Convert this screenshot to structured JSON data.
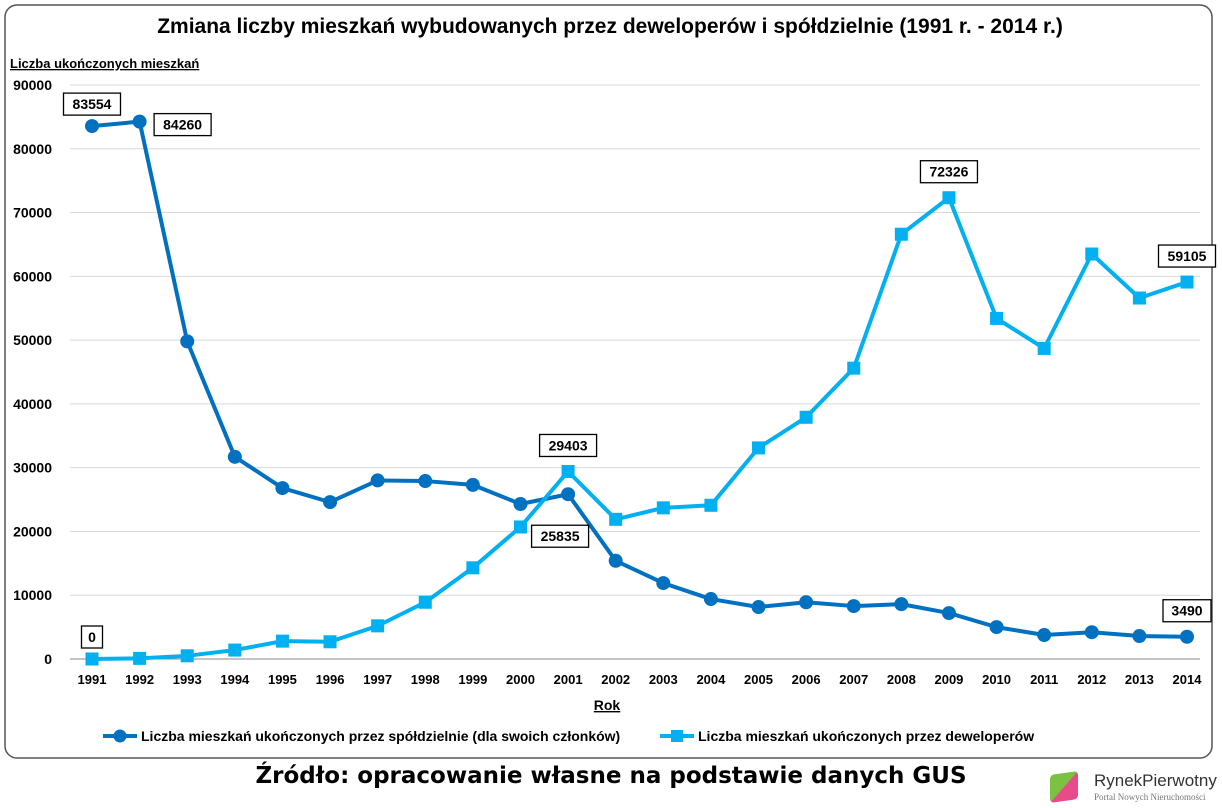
{
  "chart_data": {
    "type": "line",
    "title": "Zmiana liczby mieszkań wybudowanych przez deweloperów i spółdzielnie (1991 r. - 2014 r.)",
    "xlabel": "Rok",
    "ylabel": "Liczba ukończonych mieszkań",
    "ylim": [
      0,
      90000
    ],
    "yticks": [
      "0",
      "10000",
      "20000",
      "30000",
      "40000",
      "50000",
      "60000",
      "70000",
      "80000",
      "90000"
    ],
    "grid": "horizontal",
    "legend": "bottom",
    "categories": [
      "1991",
      "1992",
      "1993",
      "1994",
      "1995",
      "1996",
      "1997",
      "1998",
      "1999",
      "2000",
      "2001",
      "2002",
      "2003",
      "2004",
      "2005",
      "2006",
      "2007",
      "2008",
      "2009",
      "2010",
      "2011",
      "2012",
      "2013",
      "2014"
    ],
    "series": [
      {
        "name": "Liczba mieszkań ukończonych przez spółdzielnie (dla swoich członków)",
        "color": "#0070C0",
        "marker": "circle",
        "values": [
          83554,
          84260,
          49800,
          31700,
          26800,
          24600,
          28000,
          27900,
          27300,
          24300,
          25835,
          15400,
          11900,
          9400,
          8150,
          8900,
          8300,
          8600,
          7200,
          5000,
          3760,
          4200,
          3600,
          3490
        ],
        "data_labels": [
          {
            "index": 0,
            "text": "83554",
            "pos": "above"
          },
          {
            "index": 1,
            "text": "84260",
            "pos": "right"
          },
          {
            "index": 10,
            "text": "25835",
            "pos": "below"
          },
          {
            "index": 23,
            "text": "3490",
            "pos": "above"
          }
        ]
      },
      {
        "name": "Liczba mieszkań ukończonych przez deweloperów",
        "color": "#00B0F0",
        "marker": "square",
        "values": [
          0,
          100,
          500,
          1400,
          2800,
          2700,
          5200,
          8900,
          14300,
          20700,
          29403,
          21900,
          23700,
          24100,
          33100,
          37900,
          45600,
          66600,
          72326,
          53400,
          48700,
          63500,
          56600,
          59105
        ],
        "data_labels": [
          {
            "index": 0,
            "text": "0",
            "pos": "above"
          },
          {
            "index": 10,
            "text": "29403",
            "pos": "above"
          },
          {
            "index": 18,
            "text": "72326",
            "pos": "above"
          },
          {
            "index": 23,
            "text": "59105",
            "pos": "above"
          }
        ]
      }
    ]
  },
  "source": "Źródło: opracowanie własne na podstawie danych GUS",
  "logo": {
    "name": "RynekPierwotny",
    "tagline": "Portal Nowych Nieruchomości"
  }
}
